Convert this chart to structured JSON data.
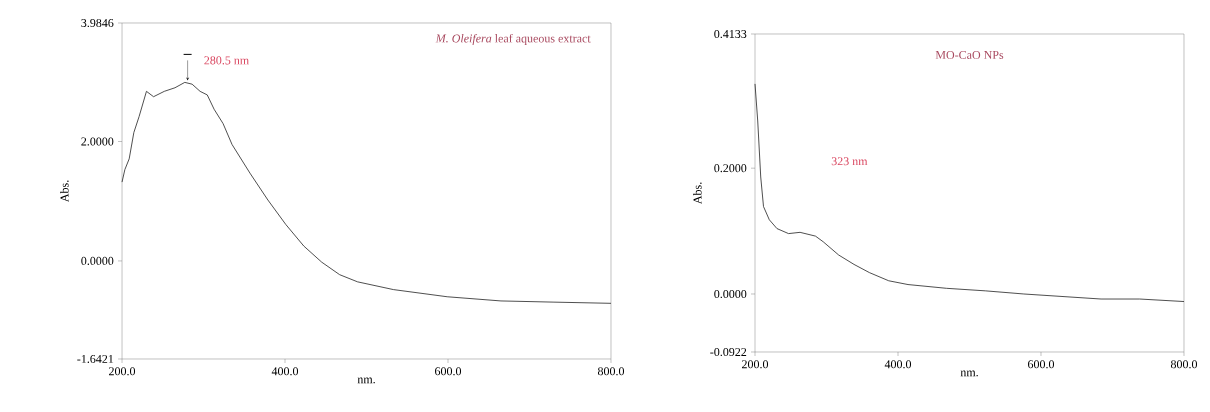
{
  "chart_data": [
    {
      "type": "line",
      "title": "*M. Oleifera* leaf aqueous extract",
      "xlabel": "nm.",
      "ylabel": "Abs.",
      "xlim": [
        200,
        800
      ],
      "ylim": [
        -1.6421,
        3.9846
      ],
      "xticks": [
        {
          "value": 200,
          "label": "200.0"
        },
        {
          "value": 400,
          "label": "400.0"
        },
        {
          "value": 600,
          "label": "600.0"
        },
        {
          "value": 800,
          "label": "800.0"
        }
      ],
      "yticks": [
        {
          "value": -1.6421,
          "label": "-1.6421"
        },
        {
          "value": 0,
          "label": "0.0000"
        },
        {
          "value": 2,
          "label": "2.0000"
        },
        {
          "value": 3.9846,
          "label": "3.9846"
        }
      ],
      "annotations": [
        {
          "text": "280.5 nm",
          "x": 280.5,
          "y": 2.99
        }
      ],
      "series": [
        {
          "color": "#222222",
          "x": [
            200,
            203.5,
            208.8,
            214.5,
            221,
            230,
            238.7,
            251.9,
            265,
            277,
            286,
            295.8,
            304.6,
            313,
            324,
            335,
            357,
            379,
            401,
            423,
            445,
            467,
            489,
            533,
            599,
            665,
            730,
            800
          ],
          "values": [
            1.32,
            1.53,
            1.71,
            2.15,
            2.42,
            2.84,
            2.75,
            2.84,
            2.9,
            2.99,
            2.96,
            2.84,
            2.78,
            2.54,
            2.3,
            1.95,
            1.47,
            1.02,
            0.61,
            0.25,
            -0.02,
            -0.23,
            -0.35,
            -0.48,
            -0.6,
            -0.67,
            -0.69,
            -0.71
          ]
        }
      ]
    },
    {
      "type": "line",
      "title": "MO-CaO NPs",
      "xlabel": "nm.",
      "ylabel": "Abs.",
      "xlim": [
        200,
        800
      ],
      "ylim": [
        -0.0922,
        0.4133
      ],
      "xticks": [
        {
          "value": 200,
          "label": "200.0"
        },
        {
          "value": 400,
          "label": "400.0"
        },
        {
          "value": 600,
          "label": "600.0"
        },
        {
          "value": 800,
          "label": "800.0"
        }
      ],
      "yticks": [
        {
          "value": -0.0922,
          "label": "-0.0922"
        },
        {
          "value": 0,
          "label": "0.0000"
        },
        {
          "value": 0.2,
          "label": "0.2000"
        },
        {
          "value": 0.4133,
          "label": "0.4133"
        }
      ],
      "annotations": [
        "323 nm"
      ],
      "series": [
        {
          "color": "#222222",
          "x": [
            200,
            203.8,
            208,
            211.9,
            220,
            230.7,
            246.9,
            263,
            284.6,
            295.4,
            317,
            338.5,
            360,
            387,
            414,
            468,
            522,
            576,
            630,
            684,
            738,
            800
          ],
          "values": [
            0.334,
            0.275,
            0.186,
            0.139,
            0.118,
            0.104,
            0.096,
            0.098,
            0.092,
            0.083,
            0.062,
            0.047,
            0.034,
            0.021,
            0.015,
            0.009,
            0.005,
            0.0,
            -0.004,
            -0.008,
            -0.008,
            -0.012
          ]
        }
      ]
    }
  ]
}
